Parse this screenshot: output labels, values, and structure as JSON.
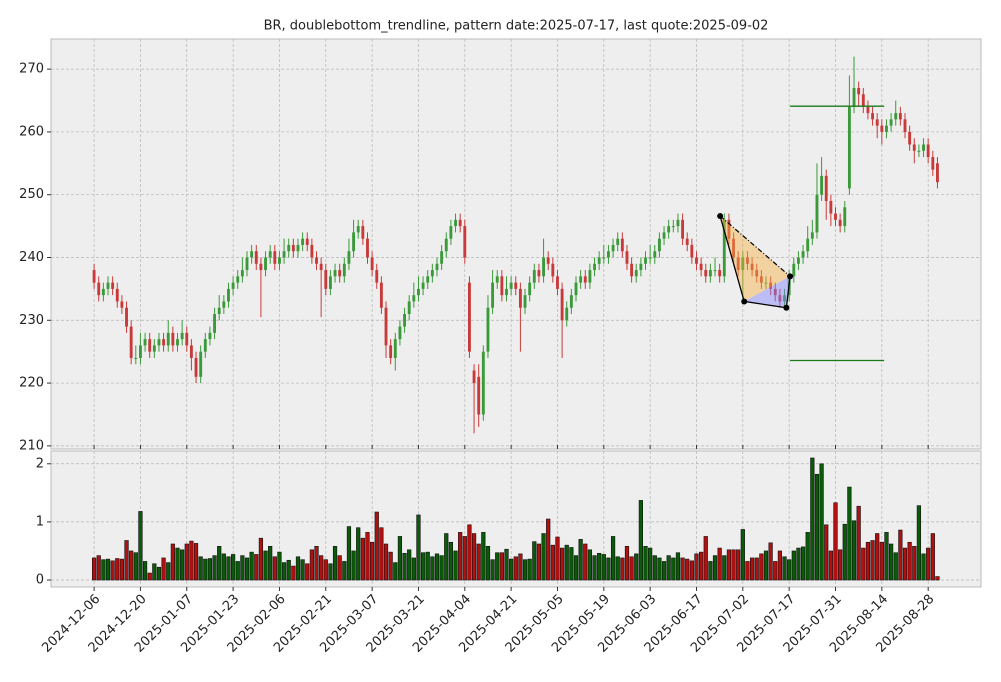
{
  "chart_data": {
    "type": "candlestick",
    "title": "BR, doublebottom_trendline, pattern date:2025-07-17, last quote:2025-09-02",
    "up_color": "#3a9a3a",
    "down_color": "#c83a3a",
    "volume_up_color": "#0a5a0a",
    "volume_down_color": "#b01010",
    "grid": true,
    "xlim": [
      -9.3,
      191.4
    ],
    "xticks": [
      {
        "value": 0,
        "label": "2024-12-06"
      },
      {
        "value": 10,
        "label": "2024-12-20"
      },
      {
        "value": 20,
        "label": "2025-01-07"
      },
      {
        "value": 30,
        "label": "2025-01-23"
      },
      {
        "value": 40,
        "label": "2025-02-06"
      },
      {
        "value": 50,
        "label": "2025-02-21"
      },
      {
        "value": 60,
        "label": "2025-03-07"
      },
      {
        "value": 70,
        "label": "2025-03-21"
      },
      {
        "value": 80,
        "label": "2025-04-04"
      },
      {
        "value": 90,
        "label": "2025-04-21"
      },
      {
        "value": 100,
        "label": "2025-05-05"
      },
      {
        "value": 110,
        "label": "2025-05-19"
      },
      {
        "value": 120,
        "label": "2025-06-03"
      },
      {
        "value": 130,
        "label": "2025-06-17"
      },
      {
        "value": 140,
        "label": "2025-07-02"
      },
      {
        "value": 150,
        "label": "2025-07-17"
      },
      {
        "value": 160,
        "label": "2025-07-31"
      },
      {
        "value": 170,
        "label": "2025-08-14"
      },
      {
        "value": 180,
        "label": "2025-08-28"
      }
    ],
    "ylim": [
      209.5,
      274.8
    ],
    "yticks": [
      210,
      220,
      230,
      240,
      250,
      260,
      270
    ],
    "y2lim": [
      -0.12,
      2.22
    ],
    "y2ticks": [
      0,
      1,
      2
    ],
    "ohlc": [
      [
        238,
        239,
        235,
        236
      ],
      [
        236,
        237,
        233,
        234
      ],
      [
        234,
        236,
        233,
        235
      ],
      [
        235,
        237,
        234,
        236
      ],
      [
        236,
        237,
        234,
        235
      ],
      [
        235,
        236,
        232,
        233
      ],
      [
        233,
        234,
        231,
        232
      ],
      [
        232,
        233,
        228,
        229
      ],
      [
        229,
        230,
        223,
        224
      ],
      [
        224,
        226,
        223,
        224
      ],
      [
        224,
        228,
        223,
        226
      ],
      [
        226,
        228,
        225,
        227
      ],
      [
        227,
        228,
        224,
        225
      ],
      [
        225,
        227,
        224,
        226
      ],
      [
        226,
        228,
        225,
        227
      ],
      [
        227,
        228,
        225,
        226
      ],
      [
        226,
        230,
        225,
        228
      ],
      [
        228,
        229,
        225,
        226
      ],
      [
        226,
        228,
        225,
        227
      ],
      [
        227,
        230,
        226,
        228
      ],
      [
        228,
        229,
        225,
        226
      ],
      [
        226,
        227,
        222,
        224
      ],
      [
        224,
        225,
        220,
        221
      ],
      [
        221,
        226,
        220,
        225
      ],
      [
        225,
        228,
        224,
        227
      ],
      [
        227,
        229,
        226,
        228
      ],
      [
        228,
        232,
        227,
        231
      ],
      [
        231,
        234,
        230,
        232
      ],
      [
        232,
        234,
        231,
        233
      ],
      [
        233,
        236,
        232,
        235
      ],
      [
        235,
        237,
        234,
        236
      ],
      [
        236,
        238,
        235,
        237
      ],
      [
        237,
        240,
        236,
        238
      ],
      [
        238,
        241,
        237,
        240
      ],
      [
        240,
        242,
        239,
        241
      ],
      [
        241,
        242,
        238,
        239
      ],
      [
        239,
        240,
        230.5,
        238
      ],
      [
        238,
        241,
        237,
        240
      ],
      [
        240,
        242,
        239,
        241
      ],
      [
        241,
        242,
        238,
        239
      ],
      [
        239,
        241,
        238,
        240
      ],
      [
        240,
        243,
        239,
        241
      ],
      [
        241,
        243,
        240,
        242
      ],
      [
        242,
        243,
        240,
        241
      ],
      [
        241,
        243,
        240,
        242
      ],
      [
        242,
        244,
        241,
        243
      ],
      [
        243,
        244,
        241,
        242
      ],
      [
        242,
        243,
        239,
        240
      ],
      [
        240,
        241,
        238,
        239
      ],
      [
        239,
        240,
        230.5,
        238
      ],
      [
        238,
        239,
        234,
        235
      ],
      [
        235,
        238,
        234,
        237
      ],
      [
        237,
        239,
        236,
        238
      ],
      [
        238,
        239,
        236,
        237
      ],
      [
        237,
        240,
        236,
        239
      ],
      [
        239,
        243,
        238,
        241
      ],
      [
        241,
        246,
        240,
        244
      ],
      [
        244,
        246,
        243,
        245
      ],
      [
        245,
        246,
        242,
        243
      ],
      [
        243,
        244,
        239,
        240
      ],
      [
        240,
        241,
        237,
        238
      ],
      [
        238,
        239,
        235,
        236
      ],
      [
        236,
        237,
        231,
        232
      ],
      [
        232,
        233,
        224,
        226
      ],
      [
        226,
        227,
        223,
        224
      ],
      [
        224,
        228,
        222,
        227
      ],
      [
        227,
        230,
        226,
        229
      ],
      [
        229,
        232,
        228,
        231
      ],
      [
        231,
        234,
        230,
        233
      ],
      [
        233,
        236,
        232,
        234
      ],
      [
        234,
        237,
        233,
        235
      ],
      [
        235,
        237,
        234,
        236
      ],
      [
        236,
        238,
        235,
        237
      ],
      [
        237,
        239,
        236,
        238
      ],
      [
        238,
        240,
        237,
        239
      ],
      [
        239,
        242,
        238,
        241
      ],
      [
        241,
        244,
        240,
        243
      ],
      [
        243,
        246,
        242,
        245
      ],
      [
        245,
        247,
        244,
        246
      ],
      [
        246,
        247,
        244,
        245
      ],
      [
        245,
        246,
        239,
        240
      ],
      [
        236,
        237,
        224,
        225
      ],
      [
        222,
        223,
        212,
        220
      ],
      [
        221,
        223,
        213,
        215
      ],
      [
        215,
        226,
        214,
        225
      ],
      [
        225,
        234,
        224,
        232
      ],
      [
        232,
        238,
        231,
        236
      ],
      [
        236,
        238,
        235,
        237
      ],
      [
        237,
        238,
        233,
        234
      ],
      [
        234,
        237,
        233,
        235
      ],
      [
        235,
        237,
        234,
        236
      ],
      [
        236,
        237,
        234,
        235
      ],
      [
        235,
        236,
        225,
        232
      ],
      [
        232,
        235,
        231,
        234
      ],
      [
        234,
        237,
        233,
        236
      ],
      [
        236,
        239,
        235,
        238
      ],
      [
        238,
        239,
        236,
        237
      ],
      [
        237,
        243,
        236,
        240
      ],
      [
        240,
        241,
        238,
        239
      ],
      [
        239,
        240,
        236,
        237
      ],
      [
        237,
        238,
        234,
        235
      ],
      [
        235,
        236,
        224,
        230
      ],
      [
        230,
        233,
        229,
        232
      ],
      [
        232,
        235,
        231,
        234
      ],
      [
        234,
        237,
        233,
        236
      ],
      [
        236,
        238,
        235,
        237
      ],
      [
        237,
        238,
        235,
        236
      ],
      [
        236,
        239,
        235,
        238
      ],
      [
        238,
        240,
        237,
        239
      ],
      [
        239,
        241,
        238,
        240
      ],
      [
        240,
        242,
        239,
        240
      ],
      [
        240,
        242,
        239,
        241
      ],
      [
        241,
        243,
        240,
        242
      ],
      [
        242,
        244,
        241,
        243
      ],
      [
        243,
        244,
        240,
        241
      ],
      [
        241,
        242,
        238,
        239
      ],
      [
        239,
        240,
        236,
        237
      ],
      [
        237,
        239,
        236,
        238
      ],
      [
        238,
        240,
        237,
        239
      ],
      [
        239,
        241,
        238,
        240
      ],
      [
        240,
        242,
        239,
        240
      ],
      [
        240,
        242,
        239,
        241
      ],
      [
        241,
        244,
        240,
        243
      ],
      [
        243,
        245,
        242,
        244
      ],
      [
        244,
        246,
        243,
        245
      ],
      [
        245,
        246,
        244,
        245
      ],
      [
        245,
        247,
        244,
        246
      ],
      [
        246,
        247,
        242,
        243
      ],
      [
        243,
        244,
        241,
        242
      ],
      [
        242,
        243,
        239,
        240
      ],
      [
        240,
        241,
        238,
        239
      ],
      [
        239,
        240,
        237,
        238
      ],
      [
        238,
        239,
        236,
        237
      ],
      [
        237,
        239,
        236,
        238
      ],
      [
        238,
        240,
        237,
        238
      ],
      [
        238,
        239,
        236,
        237
      ],
      [
        237,
        247,
        236,
        246
      ],
      [
        246,
        247,
        242,
        243
      ],
      [
        243,
        244,
        239,
        240
      ],
      [
        240,
        241,
        237,
        238
      ],
      [
        238,
        241,
        233,
        240
      ],
      [
        240,
        241,
        238,
        239
      ],
      [
        239,
        240,
        237,
        238
      ],
      [
        238,
        239,
        236,
        237
      ],
      [
        237,
        238,
        235,
        236
      ],
      [
        236,
        237,
        235,
        236
      ],
      [
        236,
        237,
        234,
        235
      ],
      [
        235,
        236,
        233,
        234
      ],
      [
        234,
        235,
        232,
        233
      ],
      [
        233,
        235,
        232,
        234
      ],
      [
        234,
        238,
        233,
        237
      ],
      [
        237,
        240,
        236,
        239
      ],
      [
        239,
        241,
        238,
        240
      ],
      [
        240,
        242,
        239,
        241
      ],
      [
        241,
        245,
        240,
        243
      ],
      [
        243,
        246,
        242,
        244
      ],
      [
        244,
        255,
        243,
        250
      ],
      [
        250,
        256,
        249,
        253
      ],
      [
        253,
        254,
        246,
        249
      ],
      [
        249,
        250,
        245,
        247
      ],
      [
        247,
        248,
        245,
        246
      ],
      [
        246,
        247,
        244,
        245
      ],
      [
        245,
        249,
        244,
        248
      ],
      [
        251,
        269,
        250,
        264
      ],
      [
        264,
        272,
        263,
        267
      ],
      [
        267,
        268,
        264,
        266
      ],
      [
        266,
        267,
        263,
        264
      ],
      [
        264,
        265,
        262,
        263
      ],
      [
        263,
        264,
        261,
        262
      ],
      [
        262,
        263,
        259,
        261
      ],
      [
        261,
        262,
        258,
        260
      ],
      [
        260,
        262,
        259,
        261
      ],
      [
        261,
        263,
        260,
        262
      ],
      [
        262,
        265,
        261,
        263
      ],
      [
        263,
        264,
        261,
        262
      ],
      [
        262,
        263,
        259,
        260
      ],
      [
        260,
        261,
        257,
        258
      ],
      [
        258,
        259,
        255,
        257
      ],
      [
        257,
        258,
        256,
        257
      ],
      [
        257,
        259,
        256,
        258
      ],
      [
        258,
        259,
        255,
        256
      ],
      [
        256,
        257,
        253,
        254
      ],
      [
        255,
        256,
        251,
        252
      ]
    ],
    "volume": [
      0.38,
      0.42,
      0.35,
      0.36,
      0.33,
      0.37,
      0.36,
      0.68,
      0.5,
      0.47,
      1.18,
      0.32,
      0.12,
      0.28,
      0.22,
      0.38,
      0.3,
      0.62,
      0.55,
      0.52,
      0.62,
      0.67,
      0.63,
      0.4,
      0.36,
      0.37,
      0.42,
      0.58,
      0.45,
      0.4,
      0.44,
      0.32,
      0.42,
      0.38,
      0.48,
      0.44,
      0.72,
      0.5,
      0.58,
      0.4,
      0.48,
      0.3,
      0.34,
      0.24,
      0.4,
      0.35,
      0.28,
      0.52,
      0.58,
      0.42,
      0.35,
      0.28,
      0.58,
      0.42,
      0.32,
      0.92,
      0.5,
      0.9,
      0.72,
      0.82,
      0.65,
      1.17,
      0.9,
      0.62,
      0.48,
      0.3,
      0.75,
      0.46,
      0.52,
      0.38,
      1.12,
      0.47,
      0.48,
      0.4,
      0.45,
      0.42,
      0.8,
      0.65,
      0.5,
      0.82,
      0.75,
      0.95,
      0.8,
      0.62,
      0.82,
      0.58,
      0.35,
      0.47,
      0.47,
      0.53,
      0.36,
      0.4,
      0.45,
      0.35,
      0.36,
      0.66,
      0.62,
      0.8,
      1.05,
      0.6,
      0.74,
      0.55,
      0.6,
      0.56,
      0.42,
      0.7,
      0.62,
      0.52,
      0.42,
      0.46,
      0.44,
      0.38,
      0.75,
      0.4,
      0.38,
      0.58,
      0.4,
      0.45,
      1.37,
      0.58,
      0.55,
      0.42,
      0.38,
      0.32,
      0.42,
      0.38,
      0.47,
      0.38,
      0.36,
      0.33,
      0.45,
      0.48,
      0.75,
      0.32,
      0.42,
      0.55,
      0.42,
      0.52,
      0.52,
      0.52,
      0.87,
      0.32,
      0.38,
      0.38,
      0.45,
      0.5,
      0.64,
      0.32,
      0.5,
      0.4,
      0.35,
      0.5,
      0.55,
      0.57,
      0.82,
      2.1,
      1.82,
      2.0,
      0.95,
      0.5,
      1.33,
      0.52,
      0.96,
      1.6,
      1.02,
      1.27,
      0.55,
      0.65,
      0.68,
      0.8,
      0.65,
      0.82,
      0.62,
      0.47,
      0.86,
      0.55,
      0.65,
      0.58,
      1.28,
      0.45,
      0.55,
      0.8,
      0.06
    ],
    "pattern_points": {
      "x": [
        135.1,
        140.3,
        149.4,
        150.2
      ],
      "y": [
        246.6,
        233,
        232,
        237
      ]
    },
    "levels": [
      {
        "x": [
          150.2,
          170.5
        ],
        "y": 264.1,
        "color": "#1a7a1a"
      },
      {
        "x": [
          150.2,
          170.5
        ],
        "y": 223.6,
        "color": "#1a7a1a"
      }
    ]
  }
}
